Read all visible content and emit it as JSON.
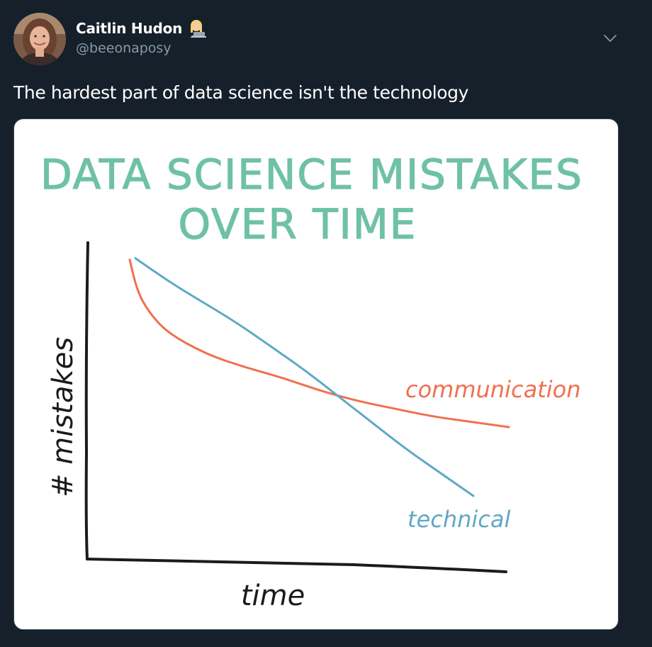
{
  "tweet": {
    "display_name": "Caitlin Hudon",
    "handle": "@beeonaposy",
    "name_emoji": "woman-technologist-emoji",
    "text": "The hardest part of data science isn't the technology"
  },
  "colors": {
    "background": "#15202b",
    "secondary_text": "#8899a6",
    "title_green": "#6ec2a3",
    "communication_line": "#f0704f",
    "technical_line": "#5fa9c4",
    "axis_ink": "#1b1b1b"
  },
  "chart_data": {
    "type": "line",
    "title_line1": "DATA SCIENCE MISTAKES",
    "title_line2": "OVER TIME",
    "xlabel": "time",
    "ylabel": "# mistakes",
    "grid": false,
    "series": [
      {
        "name": "communication",
        "x": [
          0,
          2,
          5,
          10,
          20,
          30,
          40,
          50,
          60,
          70,
          80,
          90,
          100
        ],
        "y": [
          100,
          88,
          80,
          72,
          64,
          59,
          55,
          50,
          46,
          43,
          40,
          38,
          36
        ]
      },
      {
        "name": "technical",
        "x": [
          0,
          10,
          20,
          30,
          40,
          50,
          60,
          70,
          80,
          90,
          100
        ],
        "y": [
          100,
          92,
          85,
          78,
          70,
          62,
          53,
          44,
          35,
          27,
          19
        ]
      }
    ]
  }
}
